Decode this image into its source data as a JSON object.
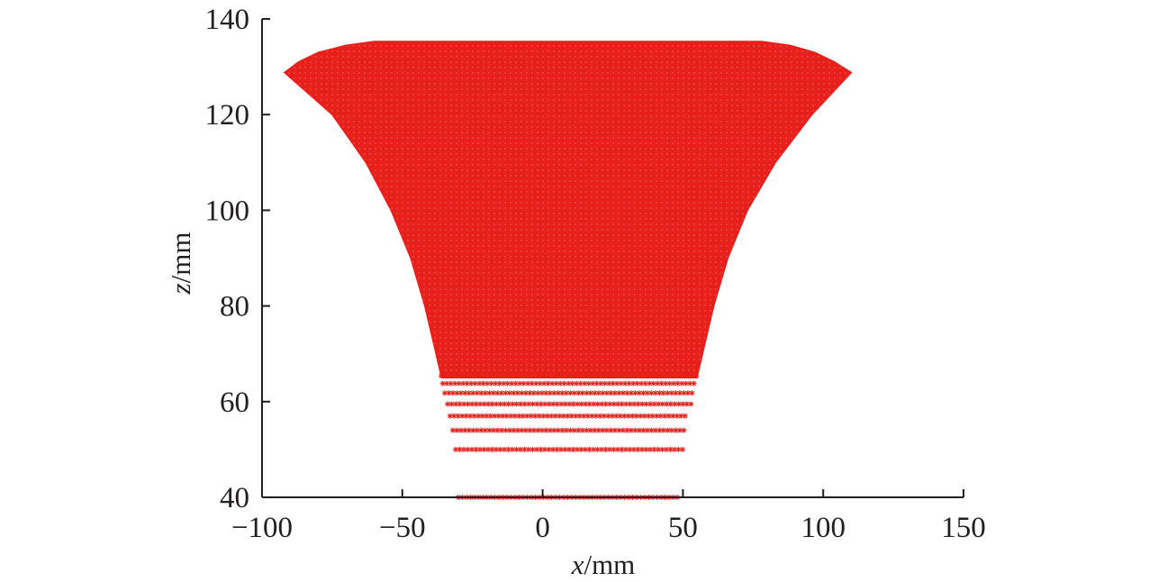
{
  "chart_data": {
    "type": "scatter",
    "title": "",
    "xlabel_var": "x",
    "xlabel_unit": "/mm",
    "ylabel_var": "z",
    "ylabel_unit": "/mm",
    "xlim": [
      -100,
      150
    ],
    "ylim": [
      40,
      140
    ],
    "xticks": [
      -100,
      -50,
      0,
      50,
      100,
      150
    ],
    "yticks": [
      40,
      60,
      80,
      100,
      120,
      140
    ],
    "xtick_labels": [
      "−100",
      "−50",
      "0",
      "50",
      "100",
      "150"
    ],
    "ytick_labels": [
      "40",
      "60",
      "80",
      "100",
      "120",
      "140"
    ],
    "grid": false,
    "legend": "none",
    "marker": "asterisk",
    "series_color": "#e8201c",
    "profile": {
      "z": [
        40,
        50,
        54,
        57,
        60,
        62,
        65,
        70,
        80,
        90,
        100,
        110,
        120,
        128.8,
        131,
        133,
        134.5,
        135.3
      ],
      "x_left": [
        -30,
        -31,
        -32,
        -33,
        -34,
        -35,
        -36,
        -38,
        -42,
        -47,
        -54,
        -63,
        -75,
        -92,
        -87,
        -80,
        -70,
        -60
      ],
      "x_right": [
        49,
        50,
        51,
        52,
        53,
        54,
        55,
        57,
        61,
        66,
        73,
        83,
        96,
        110,
        104,
        97,
        88,
        78
      ]
    },
    "marker_rows_z": [
      40,
      50,
      54,
      57,
      59.5,
      61.8,
      63.8,
      65.4
    ]
  }
}
